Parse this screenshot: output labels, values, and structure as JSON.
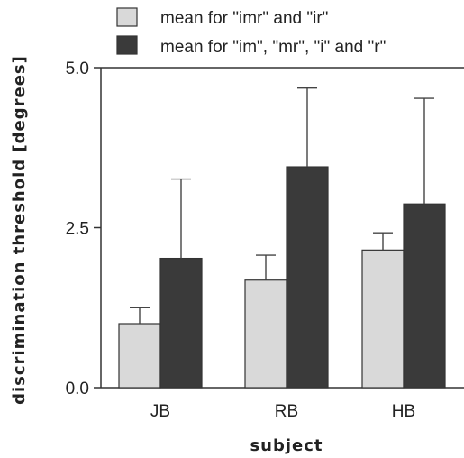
{
  "chart_data": {
    "type": "bar",
    "title": "",
    "xlabel": "subject",
    "ylabel": "discrimination threshold [degrees]",
    "categories": [
      "JB",
      "RB",
      "HB"
    ],
    "ylim": [
      0,
      5
    ],
    "yticks": [
      "0.0",
      "2.5",
      "5.0"
    ],
    "legend_position": "top",
    "grid": false,
    "series": [
      {
        "name": "mean for \"imr\" and \"ir\"",
        "color": "#d9d9d9",
        "values": [
          1.0,
          1.68,
          2.15
        ],
        "error_upper": [
          1.25,
          2.07,
          2.42
        ]
      },
      {
        "name": "mean for \"im\", \"mr\", \"i\" and \"r\"",
        "color": "#3a3a3a",
        "values": [
          2.02,
          3.45,
          2.87
        ],
        "error_upper": [
          3.26,
          4.68,
          4.52
        ]
      }
    ]
  }
}
